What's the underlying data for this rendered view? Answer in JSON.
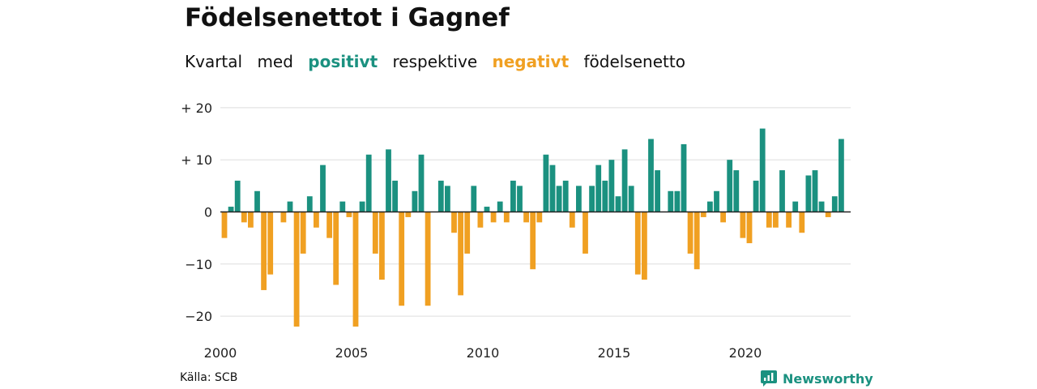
{
  "title": "Födelsenettot i Gagnef",
  "subtitle": {
    "w1": "Kvartal",
    "w2": "med",
    "positive": "positivt",
    "w3": "respektive",
    "negative": "negativt",
    "w4": "födelsenetto"
  },
  "source": "Källa: SCB",
  "brand": "Newsworthy",
  "colors": {
    "positive": "#1b9180",
    "negative": "#f0a022",
    "grid": "#dddddd",
    "axis": "#222222"
  },
  "chart_data": {
    "type": "bar",
    "title": "Födelsenettot i Gagnef",
    "xlabel": "",
    "ylabel": "",
    "ylim": [
      -23,
      21
    ],
    "y_ticks": [
      20,
      10,
      0,
      -10,
      -20
    ],
    "y_tick_labels": [
      "+ 20",
      "+ 10",
      "0",
      "−10",
      "−20"
    ],
    "x_ticks": [
      2000,
      2005,
      2010,
      2015,
      2020
    ],
    "x_tick_labels": [
      "2000",
      "2005",
      "2010",
      "2015",
      "2020"
    ],
    "x_start": 2000,
    "periods_per_year": 4,
    "categories": [
      "2000K1",
      "2000K2",
      "2000K3",
      "2000K4",
      "2001K1",
      "2001K2",
      "2001K3",
      "2001K4",
      "2002K1",
      "2002K2",
      "2002K3",
      "2002K4",
      "2003K1",
      "2003K2",
      "2003K3",
      "2003K4",
      "2004K1",
      "2004K2",
      "2004K3",
      "2004K4",
      "2005K1",
      "2005K2",
      "2005K3",
      "2005K4",
      "2006K1",
      "2006K2",
      "2006K3",
      "2006K4",
      "2007K1",
      "2007K2",
      "2007K3",
      "2007K4",
      "2008K1",
      "2008K2",
      "2008K3",
      "2008K4",
      "2009K1",
      "2009K2",
      "2009K3",
      "2009K4",
      "2010K1",
      "2010K2",
      "2010K3",
      "2010K4",
      "2011K1",
      "2011K2",
      "2011K3",
      "2011K4",
      "2012K1",
      "2012K2",
      "2012K3",
      "2012K4",
      "2013K1",
      "2013K2",
      "2013K3",
      "2013K4",
      "2014K1",
      "2014K2",
      "2014K3",
      "2014K4",
      "2015K1",
      "2015K2",
      "2015K3",
      "2015K4",
      "2016K1",
      "2016K2",
      "2016K3",
      "2016K4",
      "2017K1",
      "2017K2",
      "2017K3",
      "2017K4",
      "2018K1",
      "2018K2",
      "2018K3",
      "2018K4",
      "2019K1",
      "2019K2",
      "2019K3",
      "2019K4",
      "2020K1",
      "2020K2",
      "2020K3",
      "2020K4",
      "2021K1",
      "2021K2",
      "2021K3",
      "2021K4",
      "2022K1",
      "2022K2",
      "2022K3",
      "2022K4",
      "2023K1",
      "2023K2",
      "2023K3",
      "2023K4"
    ],
    "values": [
      -5,
      1,
      6,
      -2,
      -3,
      4,
      -15,
      -12,
      0,
      -2,
      2,
      -22,
      -8,
      3,
      -3,
      9,
      -5,
      -14,
      2,
      -1,
      -22,
      2,
      11,
      -8,
      -13,
      12,
      6,
      -18,
      -1,
      4,
      11,
      -18,
      0,
      6,
      5,
      -4,
      -16,
      -8,
      5,
      -3,
      1,
      -2,
      2,
      -2,
      6,
      5,
      -2,
      -11,
      -2,
      11,
      9,
      5,
      6,
      -3,
      5,
      -8,
      5,
      9,
      6,
      10,
      3,
      12,
      5,
      -12,
      -13,
      14,
      8,
      0,
      4,
      4,
      13,
      -8,
      -11,
      -1,
      2,
      4,
      -2,
      10,
      8,
      -5,
      -6,
      6,
      16,
      -3,
      -3,
      8,
      -3,
      2,
      -4,
      7,
      8,
      2,
      -1,
      3,
      14,
      0
    ]
  }
}
